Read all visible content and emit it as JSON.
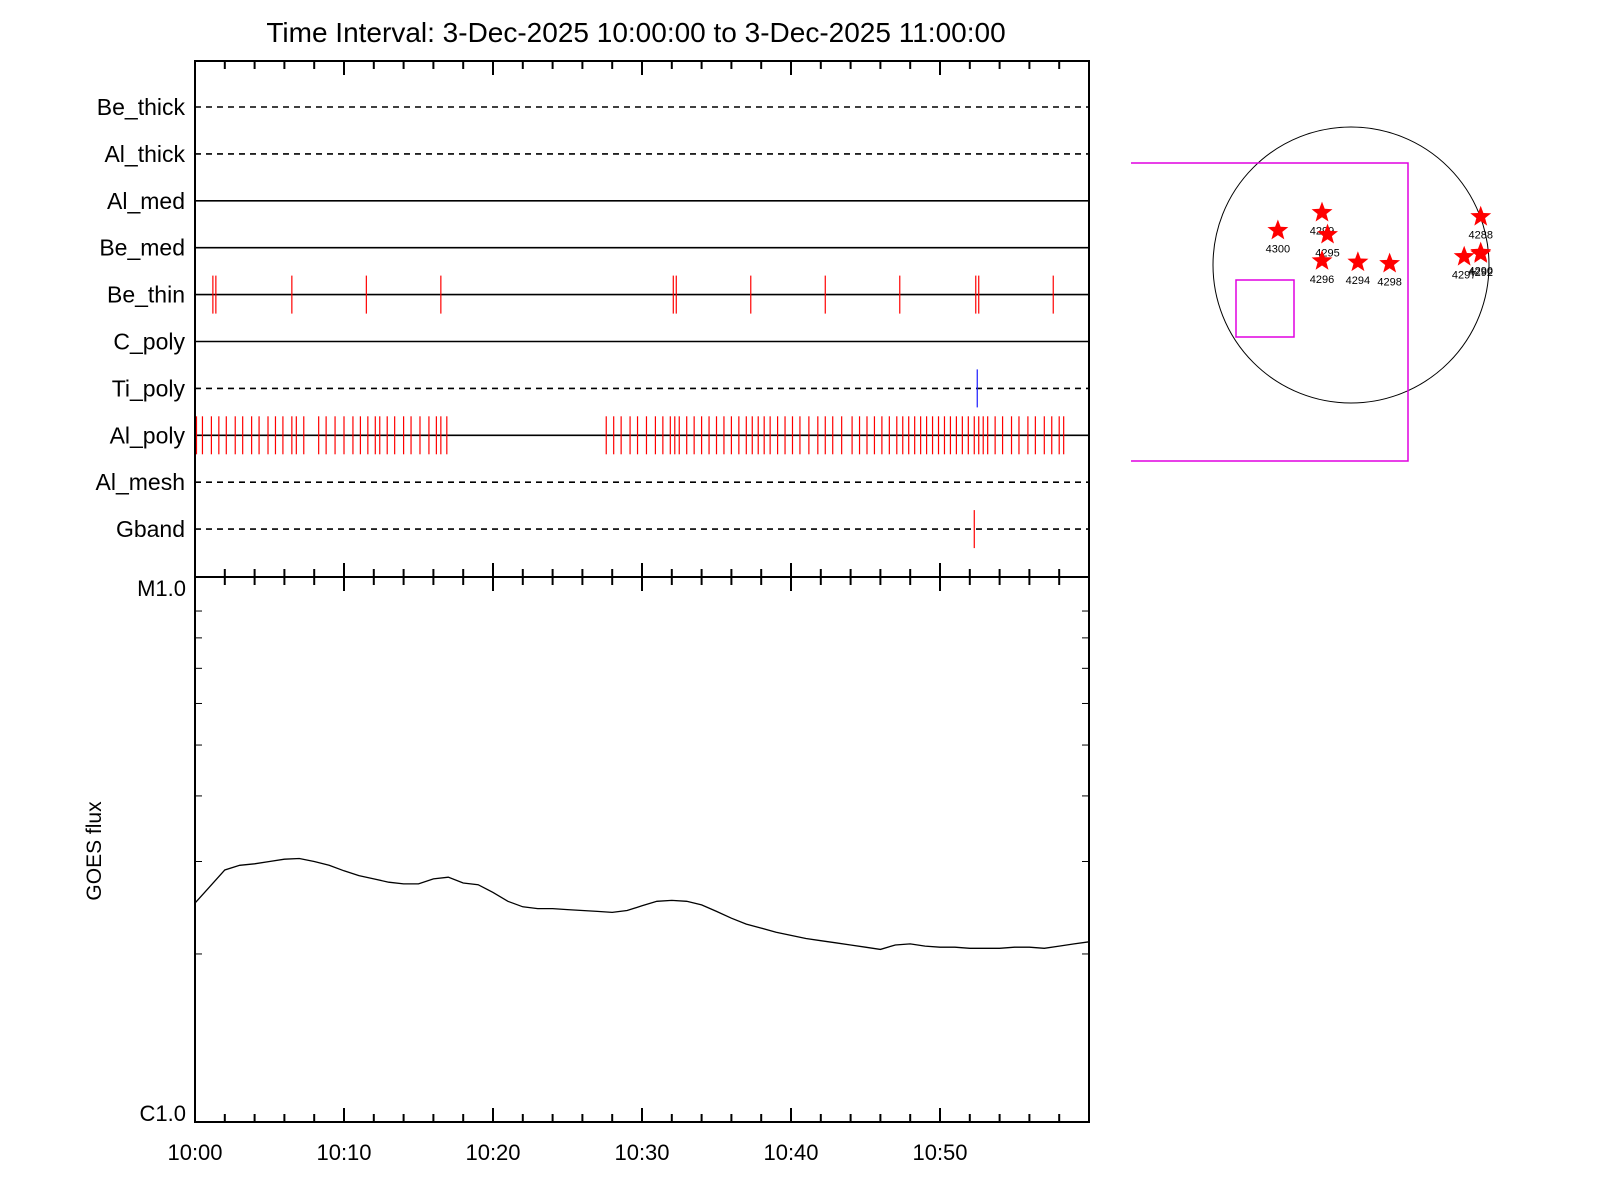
{
  "title": "Time Interval:  3-Dec-2025 10:00:00 to  3-Dec-2025 11:00:00",
  "colors": {
    "obs_mark": "#ff0000",
    "ti_poly_mark": "#1a1aff",
    "line": "#000000",
    "fov_box": "#e000e0",
    "star": "#ff0000"
  },
  "chart_data": [
    {
      "type": "timeline",
      "name_shown": "",
      "x_range": [
        "10:00",
        "11:00"
      ],
      "rows": [
        {
          "label": "Be_thick",
          "style": "dashed",
          "marks": []
        },
        {
          "label": "Al_thick",
          "style": "dashed",
          "marks": []
        },
        {
          "label": "Al_med",
          "style": "solid",
          "marks": []
        },
        {
          "label": "Be_med",
          "style": "solid",
          "marks": []
        },
        {
          "label": "Be_thin",
          "style": "solid",
          "marks": [
            1.2,
            1.4,
            6.5,
            11.5,
            16.5,
            32.1,
            32.3,
            37.3,
            42.3,
            47.3,
            52.4,
            52.6,
            57.6
          ]
        },
        {
          "label": "C_poly",
          "style": "solid",
          "marks": []
        },
        {
          "label": "Ti_poly",
          "style": "dashed",
          "mark_color": "blue",
          "marks": [
            52.5
          ]
        },
        {
          "label": "Al_poly",
          "style": "solid",
          "marks": [
            0.1,
            0.5,
            1.1,
            1.6,
            2.1,
            2.7,
            3.2,
            3.8,
            4.3,
            4.9,
            5.4,
            5.9,
            6.5,
            6.8,
            7.3,
            8.3,
            8.8,
            9.4,
            10.0,
            10.6,
            11.1,
            11.6,
            12.1,
            12.4,
            12.9,
            13.4,
            14.0,
            14.5,
            15.1,
            15.7,
            16.2,
            16.5,
            16.9,
            27.6,
            28.1,
            28.6,
            29.2,
            29.7,
            30.3,
            30.9,
            31.4,
            31.9,
            32.2,
            32.5,
            33.0,
            33.5,
            34.0,
            34.5,
            35.0,
            35.5,
            36.0,
            36.5,
            37.0,
            37.4,
            37.8,
            38.2,
            38.6,
            39.1,
            39.6,
            40.1,
            40.6,
            41.2,
            41.8,
            42.3,
            42.8,
            43.4,
            44.1,
            44.6,
            45.1,
            45.6,
            46.1,
            46.6,
            47.1,
            47.5,
            47.9,
            48.3,
            48.7,
            49.1,
            49.5,
            49.9,
            50.3,
            50.7,
            51.1,
            51.5,
            51.9,
            52.3,
            52.6,
            52.9,
            53.2,
            53.7,
            54.2,
            54.8,
            55.3,
            55.9,
            56.4,
            57.0,
            57.5,
            58.0,
            58.3
          ]
        },
        {
          "label": "Al_mesh",
          "style": "dashed",
          "marks": []
        },
        {
          "label": "Gband",
          "style": "dashed",
          "marks": [
            52.3
          ]
        }
      ]
    },
    {
      "type": "line",
      "xlabel": "",
      "ylabel": "GOES flux",
      "y_scale": "log",
      "ylim": [
        "C1.0",
        "M1.0"
      ],
      "y_tick_labels": [
        "M1.0",
        "C1.0"
      ],
      "x_tick_labels": [
        "10:00",
        "10:10",
        "10:20",
        "10:30",
        "10:40",
        "10:50"
      ],
      "grid": false,
      "series": [
        {
          "name": "",
          "x_minutes": [
            0,
            2,
            3,
            4,
            5,
            6,
            7,
            8,
            9,
            10,
            11,
            12,
            13,
            14,
            15,
            16,
            17,
            18,
            19,
            20,
            21,
            22,
            23,
            24,
            25,
            26,
            27,
            28,
            29,
            30,
            31,
            32,
            33,
            34,
            35,
            36,
            37,
            38,
            39,
            40,
            41,
            42,
            43,
            44,
            45,
            46,
            47,
            48,
            49,
            50,
            51,
            52,
            53,
            54,
            55,
            56,
            57,
            58,
            59,
            60
          ],
          "flux_c_units": [
            2.5,
            2.89,
            2.95,
            2.97,
            3.0,
            3.03,
            3.04,
            3.0,
            2.95,
            2.88,
            2.82,
            2.78,
            2.74,
            2.72,
            2.72,
            2.78,
            2.8,
            2.73,
            2.71,
            2.62,
            2.52,
            2.46,
            2.44,
            2.44,
            2.43,
            2.42,
            2.41,
            2.4,
            2.42,
            2.47,
            2.52,
            2.53,
            2.52,
            2.48,
            2.41,
            2.34,
            2.28,
            2.24,
            2.2,
            2.17,
            2.14,
            2.12,
            2.1,
            2.08,
            2.06,
            2.04,
            2.08,
            2.09,
            2.07,
            2.06,
            2.06,
            2.05,
            2.05,
            2.05,
            2.06,
            2.06,
            2.05,
            2.07,
            2.09,
            2.11
          ]
        }
      ]
    },
    {
      "type": "scatter",
      "panel": "solar-disk-map",
      "active_regions": [
        {
          "id": "4299",
          "x": -210,
          "y": 380
        },
        {
          "id": "4300",
          "x": -530,
          "y": 250
        },
        {
          "id": "4295",
          "x": -170,
          "y": 220
        },
        {
          "id": "4296",
          "x": -210,
          "y": 30
        },
        {
          "id": "4294",
          "x": 50,
          "y": 20
        },
        {
          "id": "4298",
          "x": 280,
          "y": 10
        },
        {
          "id": "4297",
          "x": 820,
          "y": 60
        },
        {
          "id": "4288",
          "x": 940,
          "y": 350
        },
        {
          "id": "4290",
          "x": 940,
          "y": 90
        },
        {
          "id": "4292",
          "x": 940,
          "y": 80
        }
      ]
    }
  ]
}
